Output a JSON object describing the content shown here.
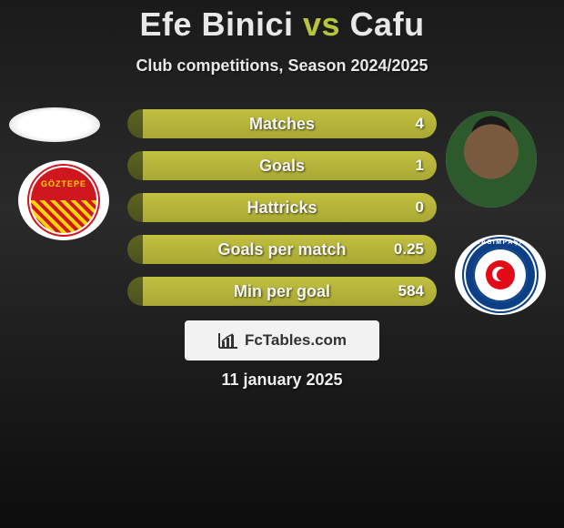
{
  "title": {
    "player1": "Efe Binici",
    "vs": "vs",
    "player2": "Cafu"
  },
  "subtitle": "Club competitions, Season 2024/2025",
  "date": "11 january 2025",
  "watermark": "FcTables.com",
  "colors": {
    "accent_player1": "#e8e8e8",
    "accent_vs": "#b8c43a",
    "bar_left": "#4c511e",
    "bar_right": "#a9a834",
    "background_dark": "#1a1a1a"
  },
  "stats": [
    {
      "label": "Matches",
      "value": "4",
      "left_pct": 5
    },
    {
      "label": "Goals",
      "value": "1",
      "left_pct": 5
    },
    {
      "label": "Hattricks",
      "value": "0",
      "left_pct": 5
    },
    {
      "label": "Goals per match",
      "value": "0.25",
      "left_pct": 5
    },
    {
      "label": "Min per goal",
      "value": "584",
      "left_pct": 5
    }
  ],
  "left": {
    "player_icon": "blank-avatar",
    "club_icon": "goztepe-crest",
    "club_text": "GÖZTEPE"
  },
  "right": {
    "player_icon": "player-face",
    "club_icon": "kasimpasa-crest",
    "club_text": "KASIMPAŞA"
  }
}
